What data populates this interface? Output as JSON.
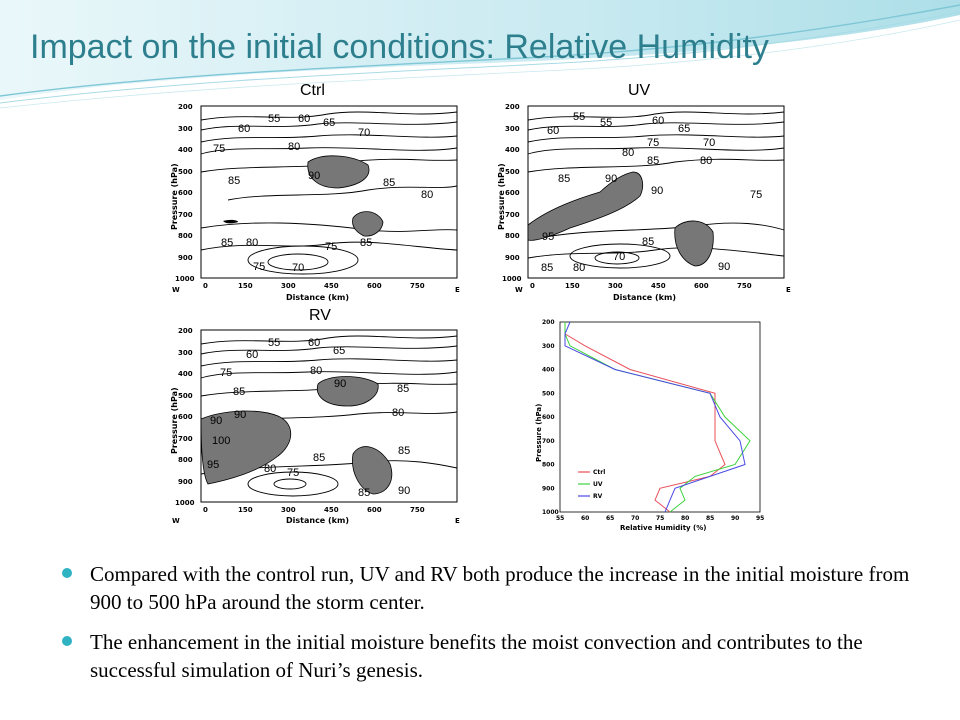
{
  "title": "Impact on the initial conditions: Relative Humidity",
  "panels": {
    "ctrl": {
      "label": "Ctrl",
      "contour_labels": [
        "55",
        "60",
        "65",
        "70",
        "60",
        "75",
        "80",
        "90",
        "85",
        "85",
        "80",
        "85",
        "80",
        "75",
        "85",
        "75",
        "70"
      ]
    },
    "uv": {
      "label": "UV",
      "contour_labels": [
        "55",
        "55",
        "60",
        "60",
        "65",
        "75",
        "70",
        "80",
        "85",
        "80",
        "85",
        "90",
        "90",
        "75",
        "95",
        "85",
        "70",
        "85",
        "80",
        "90"
      ]
    },
    "rv": {
      "label": "RV",
      "contour_labels": [
        "55",
        "60",
        "60",
        "65",
        "75",
        "80",
        "90",
        "85",
        "85",
        "90",
        "90",
        "80",
        "100",
        "95",
        "80",
        "75",
        "85",
        "85",
        "85",
        "90"
      ]
    }
  },
  "axes": {
    "y_ticks": [
      "200",
      "300",
      "400",
      "500",
      "600",
      "700",
      "800",
      "900",
      "1000"
    ],
    "x_ticks": [
      "0",
      "150",
      "300",
      "450",
      "600",
      "750"
    ],
    "y_label": "Pressure (hPa)",
    "x_label": "Distance (km)",
    "x_left": "W",
    "x_right": "E"
  },
  "profile": {
    "y_label": "Pressure (hPa)",
    "x_label": "Relative Humidity (%)",
    "x_ticks": [
      "55",
      "60",
      "65",
      "70",
      "75",
      "80",
      "85",
      "90",
      "95"
    ],
    "y_ticks": [
      "200",
      "300",
      "400",
      "500",
      "600",
      "700",
      "800",
      "900",
      "1000"
    ],
    "colors": {
      "ctrl": "#e8505a",
      "uv": "#3cd23c",
      "rv": "#4a4ae6"
    }
  },
  "chart_data": {
    "type": "line",
    "x_label": "Relative Humidity (%)",
    "y_label": "Pressure (hPa)",
    "xlim": [
      55,
      95
    ],
    "ylim": [
      1000,
      200
    ],
    "series": [
      {
        "name": "Ctrl",
        "x": [
          56,
          56,
          60,
          69,
          86,
          86,
          86,
          88,
          85,
          75,
          74,
          77
        ],
        "y": [
          200,
          250,
          300,
          400,
          500,
          600,
          700,
          800,
          850,
          900,
          950,
          1000
        ]
      },
      {
        "name": "UV",
        "x": [
          56,
          56,
          57,
          66,
          85,
          88,
          93,
          90,
          82,
          79,
          80,
          77
        ],
        "y": [
          200,
          250,
          300,
          400,
          500,
          600,
          700,
          800,
          850,
          900,
          950,
          1000
        ]
      },
      {
        "name": "RV",
        "x": [
          57,
          56,
          56,
          66,
          85,
          87,
          91,
          92,
          85,
          78,
          77,
          76
        ],
        "y": [
          200,
          250,
          300,
          400,
          500,
          600,
          700,
          800,
          850,
          900,
          950,
          1000
        ]
      }
    ]
  },
  "bullets": [
    "Compared with the control run, UV and RV both produce the increase in the initial moisture from 900 to 500 hPa around the storm center.",
    "The enhancement in the initial moisture benefits the moist convection and contributes to the successful simulation of Nuri’s genesis."
  ]
}
